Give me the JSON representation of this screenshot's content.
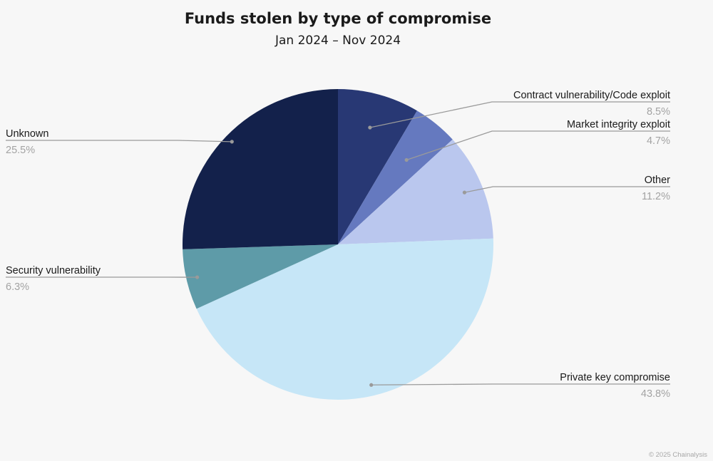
{
  "header": {
    "title": "Funds stolen by type of compromise",
    "subtitle": "Jan 2024 – Nov 2024"
  },
  "credit": "© 2025 Chainalysis",
  "chart_data": {
    "type": "pie",
    "title": "Funds stolen by type of compromise",
    "subtitle": "Jan 2024 – Nov 2024",
    "start": "12 o'clock",
    "direction": "clockwise",
    "slices": [
      {
        "label": "Contract vulnerability/Code exploit",
        "value": 8.5,
        "value_label": "8.5%",
        "color": "#283874"
      },
      {
        "label": "Market integrity exploit",
        "value": 4.7,
        "value_label": "4.7%",
        "color": "#6579bf"
      },
      {
        "label": "Other",
        "value": 11.2,
        "value_label": "11.2%",
        "color": "#bac7ee"
      },
      {
        "label": "Private key compromise",
        "value": 43.8,
        "value_label": "43.8%",
        "color": "#c6e6f7"
      },
      {
        "label": "Security vulnerability",
        "value": 6.3,
        "value_label": "6.3%",
        "color": "#5e9ba8"
      },
      {
        "label": "Unknown",
        "value": 25.5,
        "value_label": "25.5%",
        "color": "#13214b"
      }
    ]
  }
}
